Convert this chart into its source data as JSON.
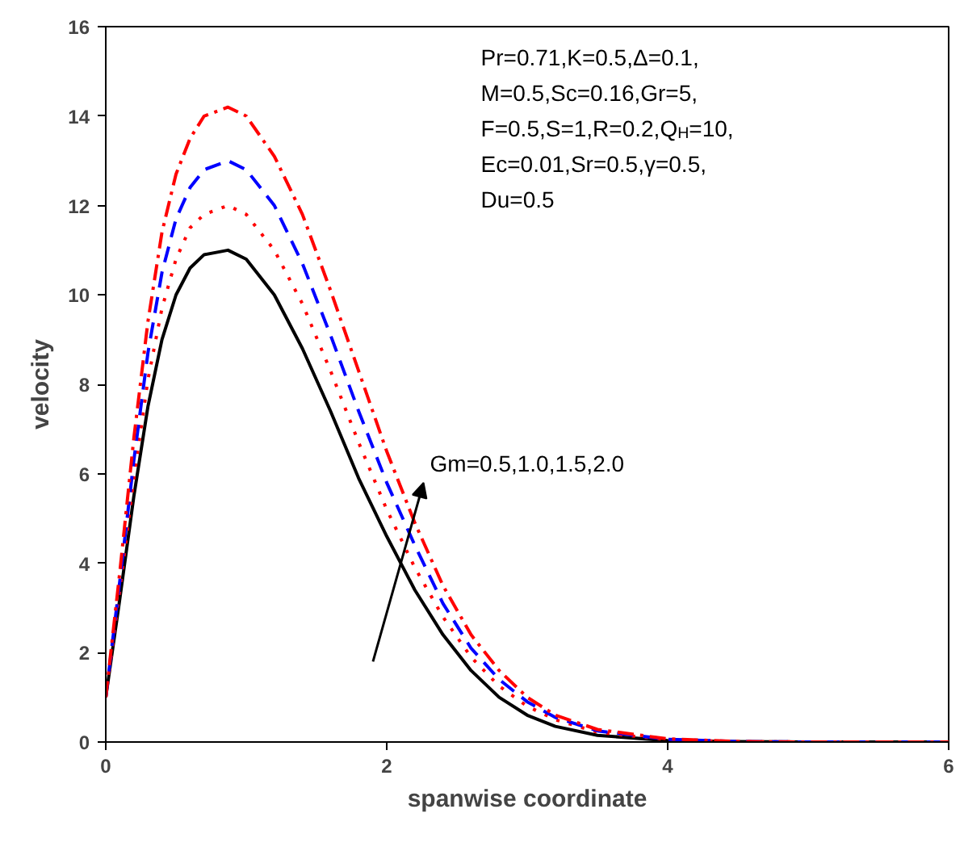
{
  "chart_data": {
    "type": "line",
    "xlabel": "spanwise coordinate",
    "ylabel": "velocity",
    "xlim": [
      0,
      6
    ],
    "ylim": [
      0,
      16
    ],
    "xticks": [
      0,
      2,
      4,
      6
    ],
    "yticks": [
      0,
      2,
      4,
      6,
      8,
      10,
      12,
      14,
      16
    ],
    "grid": false,
    "marker": "none",
    "x": [
      0,
      0.1,
      0.2,
      0.3,
      0.4,
      0.5,
      0.6,
      0.7,
      0.87,
      1.0,
      1.2,
      1.4,
      1.6,
      1.8,
      2.0,
      2.2,
      2.4,
      2.6,
      2.8,
      3.0,
      3.2,
      3.5,
      4.0,
      4.5,
      5.0,
      6.0
    ],
    "series": [
      {
        "color": "#000000",
        "line_style": "solid",
        "values": [
          1,
          3.2,
          5.5,
          7.5,
          9.0,
          10.0,
          10.6,
          10.9,
          11.0,
          10.8,
          10.0,
          8.8,
          7.4,
          5.9,
          4.6,
          3.4,
          2.4,
          1.6,
          1.0,
          0.6,
          0.35,
          0.15,
          0.03,
          0.01,
          0,
          0
        ]
      },
      {
        "color": "#ff0000",
        "line_style": "dotted",
        "values": [
          1,
          3.4,
          5.9,
          8.1,
          9.7,
          10.8,
          11.5,
          11.8,
          12.0,
          11.8,
          11.0,
          9.8,
          8.3,
          6.7,
          5.2,
          3.9,
          2.8,
          1.9,
          1.25,
          0.8,
          0.5,
          0.22,
          0.05,
          0.01,
          0,
          0
        ]
      },
      {
        "color": "#0000ff",
        "line_style": "dashed",
        "values": [
          1,
          3.6,
          6.3,
          8.7,
          10.5,
          11.7,
          12.4,
          12.8,
          13.0,
          12.8,
          12.0,
          10.7,
          9.1,
          7.4,
          5.8,
          4.4,
          3.1,
          2.1,
          1.4,
          0.9,
          0.55,
          0.25,
          0.06,
          0.01,
          0,
          0
        ]
      },
      {
        "color": "#ff0000",
        "line_style": "dashdot",
        "values": [
          1,
          3.8,
          6.8,
          9.4,
          11.4,
          12.7,
          13.5,
          14.0,
          14.2,
          14.0,
          13.1,
          11.8,
          10.1,
          8.3,
          6.5,
          4.9,
          3.5,
          2.4,
          1.6,
          1.0,
          0.6,
          0.28,
          0.07,
          0.01,
          0,
          0
        ]
      }
    ],
    "annotations": [
      "Pr=0.71,K=0.5,Δ=0.1,\nM=0.5,Sc=0.16,Gr=5,\nF=0.5,S=1,R=0.2,Q$_{H}$=10,\nEc=0.01,Sr=0.5,γ=0.5,\nDu=0.5",
      "Gm=0.5,1.0,1.5,2.0"
    ]
  }
}
